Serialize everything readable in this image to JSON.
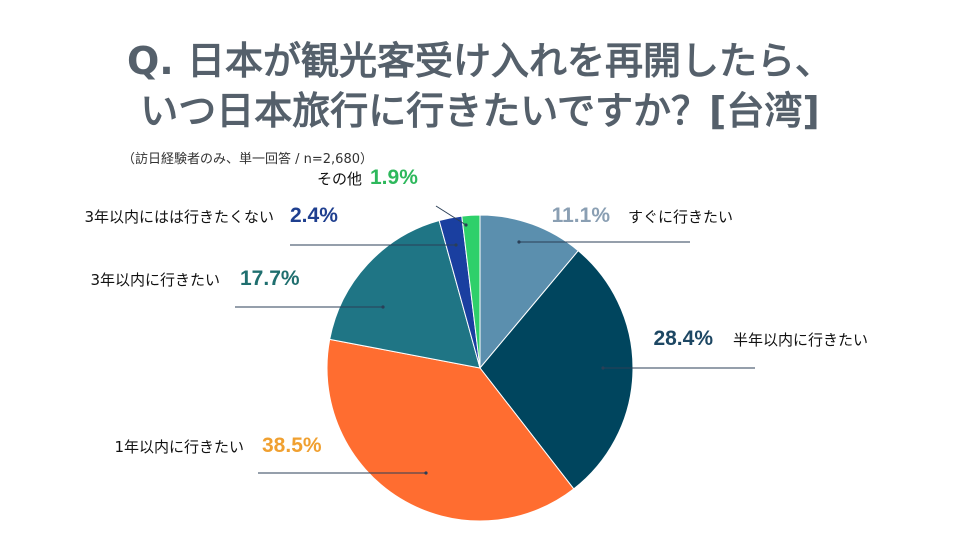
{
  "title": {
    "line1": "Q. 日本が観光客受け入れを再開したら、",
    "line2": "いつ日本旅行に行きたいですか？[台湾]"
  },
  "note": "（訪日経験者のみ、単一回答 / n=2,680）",
  "chart_data": {
    "type": "pie",
    "slices": [
      {
        "label": "すぐに行きたい",
        "value": 11.1,
        "value_label": "11.1%",
        "color": "#5b8fae",
        "label_color": "#8a9fb3"
      },
      {
        "label": "半年以内に行きたい",
        "value": 28.4,
        "value_label": "28.4%",
        "color": "#00455e",
        "label_color": "#1d4763"
      },
      {
        "label": "1年以内に行きたい",
        "value": 38.5,
        "value_label": "38.5%",
        "color": "#ff6d30",
        "label_color": "#f0a030"
      },
      {
        "label": "3年以内に行きたい",
        "value": 17.7,
        "value_label": "17.7%",
        "color": "#1f7585",
        "label_color": "#1f6f6f"
      },
      {
        "label": "3年以内にはは行きたくない",
        "value": 2.4,
        "value_label": "2.4%",
        "color": "#1a3fa0",
        "label_color": "#1f3f8f"
      },
      {
        "label": "その他",
        "value": 1.9,
        "value_label": "1.9%",
        "color": "#2ed06a",
        "label_color": "#2eb85c"
      }
    ],
    "start": "top",
    "direction": "clockwise"
  }
}
